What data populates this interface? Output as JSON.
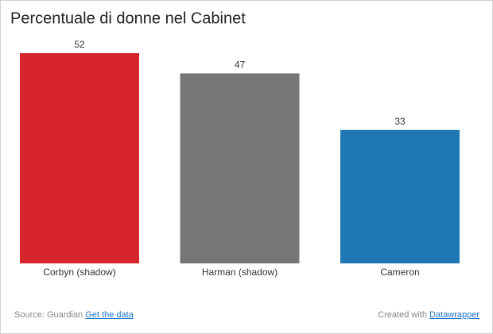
{
  "chart_data": {
    "type": "bar",
    "title": "Percentuale di donne nel Cabinet",
    "categories": [
      "Corbyn (shadow)",
      "Harman (shadow)",
      "Cameron"
    ],
    "values": [
      52,
      47,
      33
    ],
    "colors": [
      "#d7262b",
      "#767676",
      "#1f77b4"
    ],
    "source": "Source: Guardian",
    "source_link": "Get the data",
    "credit": "Created with",
    "credit_link": "Datawrapper"
  }
}
